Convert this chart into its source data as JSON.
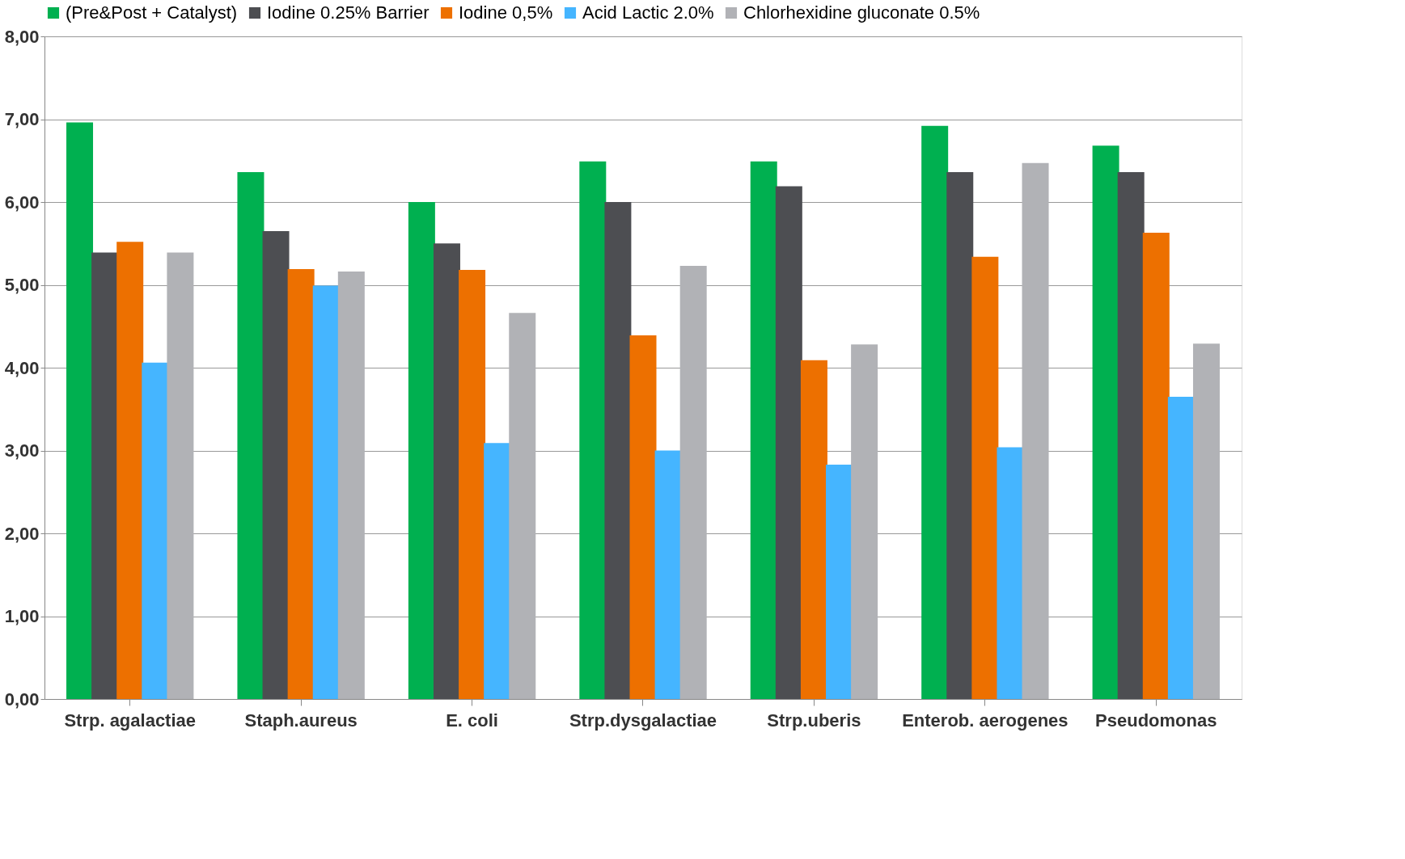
{
  "chart_data": {
    "type": "bar",
    "categories": [
      "Strp. agalactiae",
      "Staph.aureus",
      "E. coli",
      "Strp.dysgalactiae",
      "Strp.uberis",
      "Enterob. aerogenes",
      "Pseudomonas"
    ],
    "series": [
      {
        "name": "(Pre&Post + Catalyst)",
        "color": "#00b050",
        "values": [
          6.96,
          6.36,
          6.0,
          6.49,
          6.49,
          6.92,
          6.68
        ]
      },
      {
        "name": "Iodine 0.25% Barrier",
        "color": "#4d4e52",
        "values": [
          5.39,
          5.65,
          5.5,
          6.0,
          6.19,
          6.36,
          6.36
        ]
      },
      {
        "name": "Iodine 0,5%",
        "color": "#ed7000",
        "values": [
          5.52,
          5.19,
          5.18,
          4.39,
          4.09,
          5.34,
          5.63
        ]
      },
      {
        "name": "Acid Lactic 2.0%",
        "color": "#45b5ff",
        "values": [
          4.06,
          4.99,
          3.09,
          3.0,
          2.83,
          3.04,
          3.65
        ]
      },
      {
        "name": "Chlorhexidine gluconate 0.5%",
        "color": "#b1b2b6",
        "values": [
          5.39,
          5.16,
          4.66,
          5.23,
          4.28,
          6.47,
          4.29
        ]
      }
    ],
    "ylim": [
      0,
      8
    ],
    "yticks": [
      {
        "value": 0,
        "label": "0,00"
      },
      {
        "value": 1,
        "label": "1,00"
      },
      {
        "value": 2,
        "label": "2,00"
      },
      {
        "value": 3,
        "label": "3,00"
      },
      {
        "value": 4,
        "label": "4,00"
      },
      {
        "value": 5,
        "label": "5,00"
      },
      {
        "value": 6,
        "label": "6,00"
      },
      {
        "value": 7,
        "label": "7,00"
      },
      {
        "value": 8,
        "label": "8,00"
      }
    ],
    "grid": "y",
    "legend": "top"
  }
}
